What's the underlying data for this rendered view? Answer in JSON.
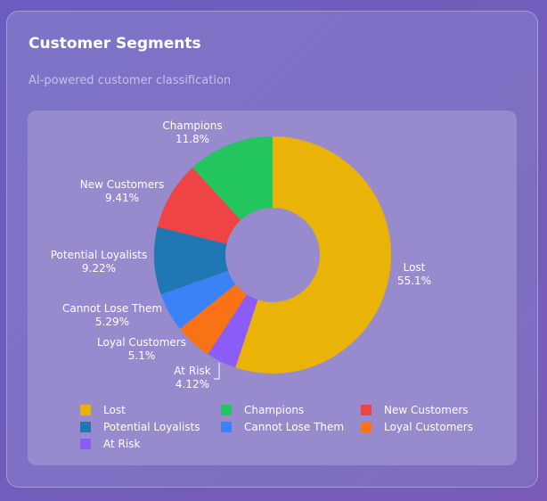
{
  "card": {
    "title": "Customer Segments",
    "subtitle": "AI-powered customer classification"
  },
  "chart_data": {
    "type": "pie",
    "donut": true,
    "categories": [
      "Lost",
      "At Risk",
      "Loyal Customers",
      "Cannot Lose Them",
      "Potential Loyalists",
      "New Customers",
      "Champions"
    ],
    "values": [
      55.1,
      4.12,
      5.1,
      5.29,
      9.22,
      9.41,
      11.8
    ],
    "value_labels": [
      "55.1%",
      "4.12%",
      "5.1%",
      "5.29%",
      "9.22%",
      "9.41%",
      "11.8%"
    ],
    "colors": [
      "#eab308",
      "#8b5cf6",
      "#f97316",
      "#3b82f6",
      "#1f77b4",
      "#ef4444",
      "#22c55e"
    ],
    "legend_position": "bottom",
    "legend": [
      "Lost",
      "Champions",
      "New Customers",
      "Potential Loyalists",
      "Cannot Lose Them",
      "Loyal Customers",
      "At Risk"
    ],
    "legend_colors": [
      "#eab308",
      "#22c55e",
      "#ef4444",
      "#1f77b4",
      "#3b82f6",
      "#f97316",
      "#8b5cf6"
    ]
  }
}
